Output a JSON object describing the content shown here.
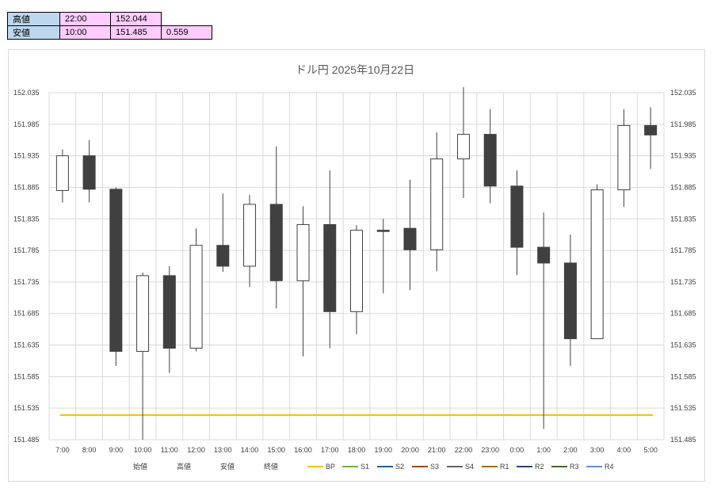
{
  "summary": {
    "high_label": "高値",
    "high_time": "22:00",
    "high_value": "152.044",
    "low_label": "安値",
    "low_time": "10:00",
    "low_value": "151.485",
    "range": "0.559"
  },
  "chart_data": {
    "type": "candlestick",
    "title": "ドル円  2025年10月22日",
    "ylim": [
      151.485,
      152.035
    ],
    "y_ticks": [
      "151.485",
      "151.535",
      "151.585",
      "151.635",
      "151.685",
      "151.735",
      "151.785",
      "151.835",
      "151.885",
      "151.935",
      "151.985",
      "152.035"
    ],
    "categories": [
      "7:00",
      "8:00",
      "9:00",
      "10:00",
      "11:00",
      "12:00",
      "13:00",
      "14:00",
      "15:00",
      "16:00",
      "17:00",
      "18:00",
      "19:00",
      "20:00",
      "21:00",
      "22:00",
      "23:00",
      "0:00",
      "1:00",
      "2:00",
      "3:00",
      "4:00",
      "5:00"
    ],
    "open": [
      151.88,
      151.935,
      151.882,
      151.625,
      151.745,
      151.63,
      151.793,
      151.76,
      151.858,
      151.737,
      151.826,
      151.688,
      151.817,
      151.82,
      151.786,
      151.93,
      151.969,
      151.887,
      151.79,
      151.765,
      151.645,
      151.881,
      151.983
    ],
    "high": [
      151.945,
      151.96,
      151.885,
      151.75,
      151.76,
      151.82,
      151.875,
      151.873,
      151.95,
      151.855,
      151.912,
      151.825,
      151.835,
      151.897,
      151.972,
      152.044,
      152.009,
      151.912,
      151.845,
      151.81,
      151.89,
      152.009,
      152.012
    ],
    "low": [
      151.861,
      151.861,
      151.602,
      151.485,
      151.591,
      151.625,
      151.751,
      151.727,
      151.693,
      151.617,
      151.63,
      151.652,
      151.717,
      151.722,
      151.752,
      151.868,
      151.86,
      151.746,
      151.502,
      151.602,
      151.645,
      151.854,
      151.914
    ],
    "close": [
      151.935,
      151.882,
      151.625,
      151.745,
      151.63,
      151.793,
      151.76,
      151.858,
      151.737,
      151.826,
      151.688,
      151.817,
      151.815,
      151.786,
      151.93,
      151.969,
      151.887,
      151.79,
      151.765,
      151.645,
      151.881,
      151.983,
      151.968
    ],
    "bp_value": 151.524,
    "legend": [
      {
        "label": "始値",
        "color": ""
      },
      {
        "label": "高値",
        "color": ""
      },
      {
        "label": "安値",
        "color": ""
      },
      {
        "label": "終値",
        "color": ""
      },
      {
        "label": "BP",
        "color": "#ffc000"
      },
      {
        "label": "S1",
        "color": "#70ad47"
      },
      {
        "label": "S2",
        "color": "#255e91"
      },
      {
        "label": "S3",
        "color": "#9e480e"
      },
      {
        "label": "S4",
        "color": "#636363"
      },
      {
        "label": "R1",
        "color": "#997300"
      },
      {
        "label": "R2",
        "color": "#264478"
      },
      {
        "label": "R3",
        "color": "#43682b"
      },
      {
        "label": "R4",
        "color": "#698ed0"
      }
    ],
    "colors": {
      "bear": "#404040",
      "bull": "#ffffff",
      "stroke": "#404040",
      "grid": "#d9d9d9",
      "bp": "#ffc000"
    }
  }
}
